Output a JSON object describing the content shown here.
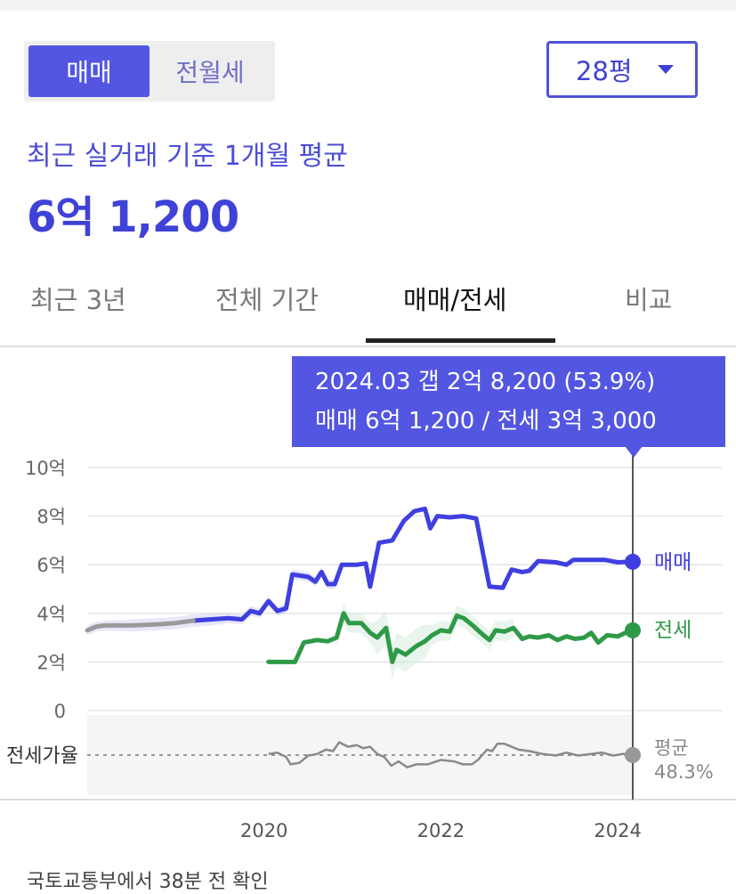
{
  "toggle": {
    "sale": "매매",
    "rent": "전월세"
  },
  "area_select": {
    "value": "28평"
  },
  "summary": {
    "caption": "최근 실거래 기준 1개월 평균",
    "price": "6억 1,200"
  },
  "tabs": [
    {
      "label": "최근 3년",
      "active": false
    },
    {
      "label": "전체 기간",
      "active": false
    },
    {
      "label": "매매/전세",
      "active": true
    },
    {
      "label": "비교",
      "active": false
    }
  ],
  "tooltip": {
    "line1": "2024.03  갭 2억 8,200 (53.9%)",
    "line2": "매매 6억 1,200 / 전세 3억 3,000"
  },
  "footer": "국토교통부에서 38분 전 확인",
  "colors": {
    "accent": "#5356e0",
    "sale": "#3f3fe0",
    "jeonse": "#2e9a47",
    "ratio": "#888888"
  },
  "chart_data": {
    "type": "line",
    "xlabel": "",
    "ylabel": "",
    "ylim": [
      0,
      10
    ],
    "xlim": [
      2018.0,
      2025.0
    ],
    "y_ticks": [
      {
        "value": 10,
        "label": "10억"
      },
      {
        "value": 8,
        "label": "8억"
      },
      {
        "value": 6,
        "label": "6억"
      },
      {
        "value": 4,
        "label": "4억"
      },
      {
        "value": 2,
        "label": "2억"
      },
      {
        "value": 0,
        "label": "0"
      }
    ],
    "x_ticks": [
      {
        "value": 2020,
        "label": "2020"
      },
      {
        "value": 2022,
        "label": "2022"
      },
      {
        "value": 2024,
        "label": "2024"
      }
    ],
    "ratio_label": "전세가율",
    "series": [
      {
        "name": "매매",
        "marker_value": 6.12,
        "values": [
          [
            2018.0,
            3.3
          ],
          [
            2018.1,
            3.45
          ],
          [
            2018.2,
            3.5
          ],
          [
            2018.5,
            3.5
          ],
          [
            2018.8,
            3.55
          ],
          [
            2019.0,
            3.6
          ],
          [
            2019.2,
            3.7
          ],
          [
            2019.4,
            3.75
          ],
          [
            2019.6,
            3.8
          ],
          [
            2019.75,
            3.75
          ],
          [
            2019.85,
            4.1
          ],
          [
            2019.95,
            4.0
          ],
          [
            2020.05,
            4.5
          ],
          [
            2020.15,
            4.1
          ],
          [
            2020.25,
            4.2
          ],
          [
            2020.32,
            5.6
          ],
          [
            2020.5,
            5.5
          ],
          [
            2020.58,
            5.3
          ],
          [
            2020.65,
            5.7
          ],
          [
            2020.72,
            5.2
          ],
          [
            2020.8,
            5.2
          ],
          [
            2020.88,
            6.0
          ],
          [
            2021.05,
            6.0
          ],
          [
            2021.15,
            6.05
          ],
          [
            2021.2,
            5.1
          ],
          [
            2021.3,
            6.9
          ],
          [
            2021.45,
            7.0
          ],
          [
            2021.58,
            7.8
          ],
          [
            2021.7,
            8.2
          ],
          [
            2021.82,
            8.3
          ],
          [
            2021.88,
            7.5
          ],
          [
            2021.96,
            8.0
          ],
          [
            2022.1,
            7.95
          ],
          [
            2022.25,
            8.0
          ],
          [
            2022.4,
            7.9
          ],
          [
            2022.55,
            5.1
          ],
          [
            2022.7,
            5.05
          ],
          [
            2022.8,
            5.8
          ],
          [
            2022.92,
            5.7
          ],
          [
            2023.0,
            5.75
          ],
          [
            2023.1,
            6.15
          ],
          [
            2023.3,
            6.1
          ],
          [
            2023.42,
            6.0
          ],
          [
            2023.5,
            6.2
          ],
          [
            2023.7,
            6.2
          ],
          [
            2023.85,
            6.2
          ],
          [
            2024.0,
            6.1
          ],
          [
            2024.15,
            6.12
          ]
        ]
      },
      {
        "name": "전세",
        "marker_value": 3.3,
        "values": [
          [
            2020.05,
            2.0
          ],
          [
            2020.2,
            2.0
          ],
          [
            2020.35,
            2.0
          ],
          [
            2020.45,
            2.8
          ],
          [
            2020.6,
            2.9
          ],
          [
            2020.72,
            2.85
          ],
          [
            2020.82,
            3.0
          ],
          [
            2020.9,
            4.0
          ],
          [
            2020.96,
            3.6
          ],
          [
            2021.1,
            3.6
          ],
          [
            2021.2,
            3.2
          ],
          [
            2021.28,
            3.0
          ],
          [
            2021.38,
            3.4
          ],
          [
            2021.45,
            2.0
          ],
          [
            2021.5,
            2.5
          ],
          [
            2021.6,
            2.3
          ],
          [
            2021.72,
            2.65
          ],
          [
            2021.82,
            2.85
          ],
          [
            2021.9,
            3.1
          ],
          [
            2022.0,
            3.3
          ],
          [
            2022.1,
            3.25
          ],
          [
            2022.18,
            3.9
          ],
          [
            2022.26,
            3.8
          ],
          [
            2022.36,
            3.5
          ],
          [
            2022.45,
            3.2
          ],
          [
            2022.55,
            2.9
          ],
          [
            2022.62,
            3.3
          ],
          [
            2022.72,
            3.25
          ],
          [
            2022.82,
            3.4
          ],
          [
            2022.92,
            2.95
          ],
          [
            2023.0,
            3.05
          ],
          [
            2023.1,
            3.0
          ],
          [
            2023.22,
            3.1
          ],
          [
            2023.32,
            2.9
          ],
          [
            2023.42,
            3.05
          ],
          [
            2023.52,
            2.95
          ],
          [
            2023.62,
            3.0
          ],
          [
            2023.7,
            3.2
          ],
          [
            2023.78,
            2.8
          ],
          [
            2023.88,
            3.1
          ],
          [
            2024.0,
            3.05
          ],
          [
            2024.15,
            3.3
          ]
        ]
      },
      {
        "name": "평균",
        "marker_value": 48.3,
        "values": [
          [
            2020.05,
            49
          ],
          [
            2020.15,
            50
          ],
          [
            2020.25,
            47
          ],
          [
            2020.3,
            42
          ],
          [
            2020.4,
            43
          ],
          [
            2020.5,
            48
          ],
          [
            2020.6,
            49
          ],
          [
            2020.7,
            52
          ],
          [
            2020.78,
            51
          ],
          [
            2020.85,
            57
          ],
          [
            2020.95,
            54
          ],
          [
            2021.05,
            55
          ],
          [
            2021.12,
            53
          ],
          [
            2021.2,
            54
          ],
          [
            2021.28,
            49
          ],
          [
            2021.36,
            47
          ],
          [
            2021.44,
            41
          ],
          [
            2021.52,
            44
          ],
          [
            2021.62,
            40
          ],
          [
            2021.72,
            42
          ],
          [
            2021.85,
            42
          ],
          [
            2022.0,
            45
          ],
          [
            2022.15,
            44
          ],
          [
            2022.25,
            42
          ],
          [
            2022.35,
            42
          ],
          [
            2022.42,
            45
          ],
          [
            2022.52,
            52
          ],
          [
            2022.58,
            51
          ],
          [
            2022.64,
            56
          ],
          [
            2022.72,
            56
          ],
          [
            2022.8,
            54
          ],
          [
            2022.88,
            52
          ],
          [
            2023.0,
            51
          ],
          [
            2023.15,
            49
          ],
          [
            2023.3,
            48
          ],
          [
            2023.42,
            50
          ],
          [
            2023.55,
            48
          ],
          [
            2023.7,
            49
          ],
          [
            2023.82,
            50
          ],
          [
            2023.95,
            48
          ],
          [
            2024.05,
            49
          ],
          [
            2024.15,
            49
          ]
        ]
      }
    ],
    "averages": [
      {
        "label": "평균",
        "value": "48.3%"
      }
    ]
  }
}
